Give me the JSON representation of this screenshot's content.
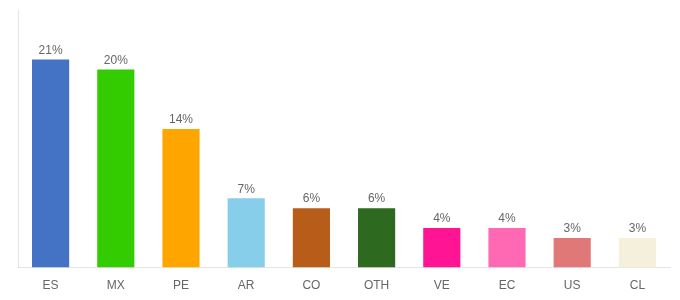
{
  "chart_data": {
    "type": "bar",
    "categories": [
      "ES",
      "MX",
      "PE",
      "AR",
      "CO",
      "OTH",
      "VE",
      "EC",
      "US",
      "CL"
    ],
    "values": [
      21,
      20,
      14,
      7,
      6,
      6,
      4,
      4,
      3,
      3
    ],
    "value_labels": [
      "21%",
      "20%",
      "14%",
      "7%",
      "6%",
      "6%",
      "4%",
      "4%",
      "3%",
      "3%"
    ],
    "colors": [
      "#4472C4",
      "#33CC00",
      "#FFA500",
      "#87CEEB",
      "#B85C1A",
      "#2D6A1F",
      "#FF1493",
      "#FF69B4",
      "#E07878",
      "#F5F0DC"
    ],
    "ylim": [
      0,
      26
    ],
    "data_labels": true,
    "tick_labels": "x",
    "grid": false
  }
}
